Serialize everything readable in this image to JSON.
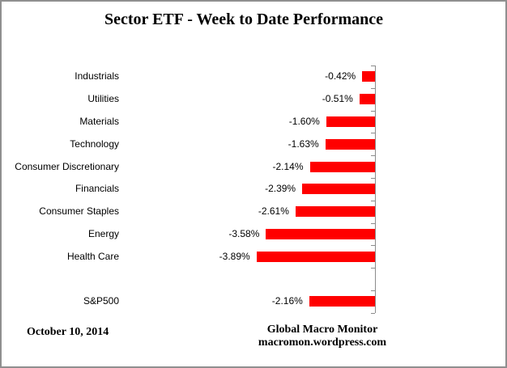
{
  "title": "Sector ETF - Week to Date Performance",
  "footer": {
    "date": "October 10, 2014",
    "brand_line1": "Global Macro Monitor",
    "brand_line2": "macromon.wordpress.com"
  },
  "chart_data": {
    "type": "bar",
    "orientation": "horizontal",
    "title": "Sector ETF - Week to Date Performance",
    "bar_color": "#ff0000",
    "axis_color": "#8c8c8c",
    "text_color": "#000000",
    "legend": "none",
    "gridlines": "off",
    "value_axis_labels": "hidden",
    "data_labels_position": "outside-end-left",
    "categories": [
      "Industrials",
      "Utilities",
      "Materials",
      "Technology",
      "Consumer Discretionary",
      "Financials",
      "Consumer Staples",
      "Energy",
      "Health Care",
      "",
      "S&P500"
    ],
    "values": [
      -0.42,
      -0.51,
      -1.6,
      -1.63,
      -2.14,
      -2.39,
      -2.61,
      -3.58,
      -3.89,
      null,
      -2.16
    ],
    "rows": [
      {
        "label": "Industrials",
        "value": -0.42,
        "text": "-0.42%"
      },
      {
        "label": "Utilities",
        "value": -0.51,
        "text": "-0.51%"
      },
      {
        "label": "Materials",
        "value": -1.6,
        "text": "-1.60%"
      },
      {
        "label": "Technology",
        "value": -1.63,
        "text": "-1.63%"
      },
      {
        "label": "Consumer Discretionary",
        "value": -2.14,
        "text": "-2.14%"
      },
      {
        "label": "Financials",
        "value": -2.39,
        "text": "-2.39%"
      },
      {
        "label": "Consumer Staples",
        "value": -2.61,
        "text": "-2.61%"
      },
      {
        "label": "Energy",
        "value": -3.58,
        "text": "-3.58%"
      },
      {
        "label": "Health Care",
        "value": -3.89,
        "text": "-3.89%"
      },
      {
        "label": "",
        "value": null,
        "text": ""
      },
      {
        "label": "S&P500",
        "value": -2.16,
        "text": "-2.16%"
      }
    ]
  }
}
